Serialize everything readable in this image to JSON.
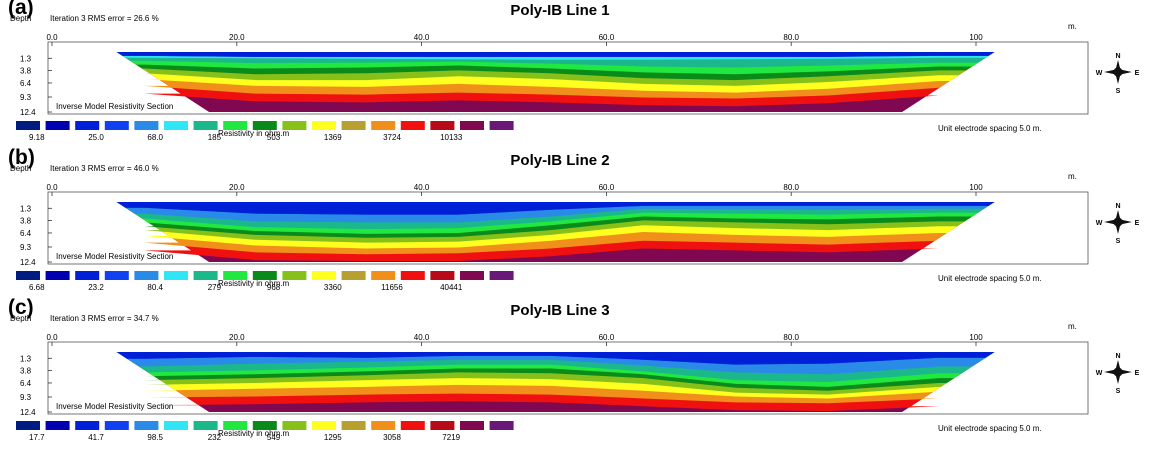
{
  "depth_label": "Depth",
  "unit_label": "m.",
  "legend_title": "Inverse Model Resistivity Section",
  "resistivity_label": "Resistivity in ohm.m",
  "spacing_label": "Unit electrode spacing 5.0 m.",
  "compass": {
    "n": "N",
    "s": "S",
    "e": "E",
    "w": "W"
  },
  "x_ticks": [
    "0.0",
    "20.0",
    "40.0",
    "60.0",
    "80.0",
    "100"
  ],
  "y_ticks": [
    "1.3",
    "3.8",
    "6.4",
    "9.3",
    "12.4"
  ],
  "colors": [
    "#001c80",
    "#0000b0",
    "#0020d8",
    "#1040f0",
    "#2a8ae8",
    "#30e6f4",
    "#1ab88a",
    "#20e840",
    "#0a8a1a",
    "#88c01a",
    "#ffff20",
    "#b8a030",
    "#f0901a",
    "#f01010",
    "#b80a18",
    "#800850",
    "#6a1878"
  ],
  "panels": [
    {
      "label": "(a)",
      "title": "Poly-IB Line 1",
      "iteration_text": "Iteration 3 RMS error = 26.6 %",
      "legend_values": [
        "9.18",
        "25.0",
        "68.0",
        "185",
        "503",
        "1369",
        "3724",
        "10133"
      ]
    },
    {
      "label": "(b)",
      "title": "Poly-IB Line 2",
      "iteration_text": "Iteration 3 RMS error = 46.0 %",
      "legend_values": [
        "6.68",
        "23.2",
        "80.4",
        "279",
        "968",
        "3360",
        "11656",
        "40441"
      ]
    },
    {
      "label": "(c)",
      "title": "Poly-IB Line 3",
      "iteration_text": "Iteration 3 RMS error = 34.7 %",
      "legend_values": [
        "17.7",
        "41.7",
        "98.5",
        "232",
        "549",
        "1295",
        "3058",
        "7219"
      ]
    }
  ],
  "chart_data": [
    {
      "type": "heatmap",
      "title": "Poly-IB Line 1",
      "xlabel": "m.",
      "ylabel": "Depth",
      "xlim": [
        0,
        108
      ],
      "ylim": [
        0,
        12.4
      ],
      "x_ticks": [
        0,
        20,
        40,
        60,
        80,
        100
      ],
      "y_ticks": [
        1.3,
        3.8,
        6.4,
        9.3,
        12.4
      ],
      "color_scale": [
        9.18,
        25.0,
        68.0,
        185,
        503,
        1369,
        3724,
        10133
      ],
      "x_profile": [
        10,
        22,
        34,
        44,
        54,
        64,
        74,
        84,
        96
      ],
      "band_depths": [
        [
          0.8,
          1.0,
          1.0,
          1.0,
          1.0,
          1.0,
          1.0,
          1.0,
          0.8
        ],
        [
          1.2,
          1.3,
          1.4,
          1.5,
          1.6,
          1.6,
          1.5,
          1.4,
          1.2
        ],
        [
          1.8,
          2.3,
          2.2,
          2.0,
          2.4,
          3.0,
          3.2,
          2.8,
          2.2
        ],
        [
          2.6,
          3.4,
          3.2,
          2.8,
          3.4,
          4.2,
          4.6,
          4.0,
          3.0
        ],
        [
          3.4,
          4.6,
          4.4,
          3.8,
          4.4,
          5.4,
          5.8,
          5.0,
          3.8
        ],
        [
          4.4,
          5.8,
          5.8,
          5.0,
          5.6,
          6.6,
          7.0,
          6.2,
          4.8
        ],
        [
          5.6,
          7.0,
          7.2,
          6.6,
          7.2,
          8.0,
          8.4,
          7.6,
          6.0
        ],
        [
          7.0,
          8.6,
          8.8,
          8.4,
          8.8,
          9.4,
          9.6,
          9.0,
          7.4
        ]
      ],
      "band_colors": [
        "#0020d8",
        "#1040f0",
        "#30e6f4",
        "#1ab88a",
        "#20e840",
        "#0a8a1a",
        "#88c01a",
        "#ffff20",
        "#f0901a"
      ],
      "bottom_color": "#800850"
    },
    {
      "type": "heatmap",
      "title": "Poly-IB Line 2",
      "xlabel": "m.",
      "ylabel": "Depth",
      "xlim": [
        0,
        108
      ],
      "ylim": [
        0,
        12.4
      ],
      "x_ticks": [
        0,
        20,
        40,
        60,
        80,
        100
      ],
      "y_ticks": [
        1.3,
        3.8,
        6.4,
        9.3,
        12.4
      ],
      "color_scale": [
        6.68,
        23.2,
        80.4,
        279,
        968,
        3360,
        11656,
        40441
      ],
      "x_profile": [
        10,
        22,
        34,
        44,
        54,
        64,
        74,
        84,
        96
      ],
      "band_depths": [
        [
          1.2,
          2.4,
          2.6,
          2.6,
          1.6,
          0.8,
          0.8,
          0.8,
          0.8
        ],
        [
          2.4,
          4.0,
          4.2,
          4.2,
          3.0,
          1.4,
          1.5,
          1.6,
          1.4
        ],
        [
          3.4,
          5.2,
          5.6,
          5.4,
          4.0,
          2.2,
          2.4,
          2.6,
          2.2
        ],
        [
          4.2,
          6.0,
          6.6,
          6.4,
          4.8,
          3.0,
          3.4,
          3.6,
          3.0
        ],
        [
          5.0,
          6.8,
          7.4,
          7.2,
          5.8,
          3.8,
          4.2,
          4.6,
          4.0
        ],
        [
          5.8,
          7.8,
          8.4,
          8.2,
          6.8,
          4.8,
          5.4,
          5.8,
          5.0
        ],
        [
          7.0,
          9.0,
          9.6,
          9.4,
          8.0,
          6.2,
          6.8,
          7.2,
          6.4
        ],
        [
          8.4,
          10.4,
          10.8,
          10.6,
          9.6,
          8.0,
          8.4,
          8.8,
          8.0
        ]
      ],
      "band_colors": [
        "#0020d8",
        "#1040f0",
        "#2a8ae8",
        "#1ab88a",
        "#20e840",
        "#0a8a1a",
        "#88c01a",
        "#ffff20",
        "#f0901a"
      ],
      "bottom_color": "#800850"
    },
    {
      "type": "heatmap",
      "title": "Poly-IB Line 3",
      "xlabel": "m.",
      "ylabel": "Depth",
      "xlim": [
        0,
        108
      ],
      "ylim": [
        0,
        12.4
      ],
      "x_ticks": [
        0,
        20,
        40,
        60,
        80,
        100
      ],
      "y_ticks": [
        1.3,
        3.8,
        6.4,
        9.3,
        12.4
      ],
      "color_scale": [
        17.7,
        41.7,
        98.5,
        232,
        549,
        1295,
        3058,
        7219
      ],
      "x_profile": [
        10,
        22,
        34,
        44,
        54,
        64,
        74,
        84,
        96
      ],
      "band_depths": [
        [
          1.4,
          1.0,
          1.2,
          0.8,
          0.8,
          1.6,
          2.6,
          2.4,
          1.2
        ],
        [
          3.0,
          2.4,
          2.0,
          1.6,
          1.6,
          2.8,
          4.2,
          4.6,
          3.0
        ],
        [
          4.2,
          3.8,
          3.2,
          2.6,
          2.6,
          4.0,
          5.8,
          6.2,
          4.4
        ],
        [
          5.0,
          4.6,
          4.0,
          3.4,
          3.4,
          4.6,
          6.6,
          7.2,
          5.4
        ],
        [
          5.8,
          5.4,
          4.8,
          4.2,
          4.4,
          5.4,
          7.4,
          8.0,
          6.4
        ],
        [
          6.8,
          6.4,
          5.8,
          5.4,
          5.6,
          6.6,
          8.4,
          8.8,
          7.2
        ],
        [
          8.0,
          7.6,
          7.2,
          6.8,
          7.0,
          8.0,
          9.2,
          9.6,
          8.2
        ],
        [
          9.4,
          9.2,
          8.8,
          8.6,
          8.8,
          9.6,
          10.4,
          10.6,
          9.6
        ]
      ],
      "band_colors": [
        "#0020d8",
        "#1040f0",
        "#2a8ae8",
        "#1ab88a",
        "#20e840",
        "#0a8a1a",
        "#88c01a",
        "#ffff20",
        "#f0901a"
      ],
      "bottom_color": "#800850"
    }
  ]
}
